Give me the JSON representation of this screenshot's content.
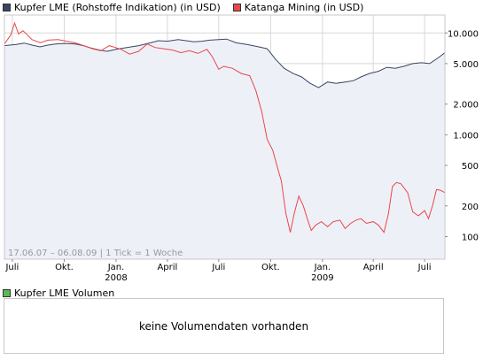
{
  "legend": [
    {
      "label": "Kupfer LME (Rohstoffe Indikation) (in USD)",
      "color": "#3a4560"
    },
    {
      "label": "Katanga Mining (in USD)",
      "color": "#e8474b"
    }
  ],
  "range_label": "17.06.07 – 06.08.09  |  1 Tick = 1 Woche",
  "volume": {
    "legend_label": "Kupfer LME Volumen",
    "legend_color": "#55bb55",
    "empty_message": "keine Volumendaten vorhanden"
  },
  "colors": {
    "copper_line": "#3a4560",
    "copper_fill": "#eef0f8",
    "katanga_line": "#e8474b",
    "grid": "#d8d8d8",
    "frame": "#c8c8c8"
  },
  "chart_data": {
    "type": "line",
    "y_scale": "log",
    "ylim": [
      60,
      15000
    ],
    "y_ticks": [
      {
        "label": "10.000",
        "value": 10000
      },
      {
        "label": "5.000",
        "value": 5000
      },
      {
        "label": "2.000",
        "value": 2000
      },
      {
        "label": "1.000",
        "value": 1000
      },
      {
        "label": "500",
        "value": 500
      },
      {
        "label": "200",
        "value": 200
      },
      {
        "label": "100",
        "value": 100
      }
    ],
    "x_range": [
      "2007-06-17",
      "2009-08-06"
    ],
    "x_ticks": [
      {
        "label": "Juli",
        "sub": "",
        "date": "2007-07-01"
      },
      {
        "label": "Okt.",
        "sub": "",
        "date": "2007-10-01"
      },
      {
        "label": "Jan.",
        "sub": "2008",
        "date": "2008-01-01"
      },
      {
        "label": "April",
        "sub": "",
        "date": "2008-04-01"
      },
      {
        "label": "Juli",
        "sub": "",
        "date": "2008-07-01"
      },
      {
        "label": "Okt.",
        "sub": "",
        "date": "2008-10-01"
      },
      {
        "label": "Jan.",
        "sub": "2009",
        "date": "2009-01-01"
      },
      {
        "label": "April",
        "sub": "",
        "date": "2009-04-01"
      },
      {
        "label": "Juli",
        "sub": "",
        "date": "2009-07-01"
      }
    ],
    "series": [
      {
        "name": "Kupfer LME (Rohstoffe Indikation) (in USD)",
        "points": [
          [
            "2007-06-17",
            7500
          ],
          [
            "2007-07-08",
            7700
          ],
          [
            "2007-07-22",
            7950
          ],
          [
            "2007-08-05",
            7600
          ],
          [
            "2007-08-19",
            7300
          ],
          [
            "2007-09-02",
            7600
          ],
          [
            "2007-09-16",
            7800
          ],
          [
            "2007-10-01",
            7900
          ],
          [
            "2007-10-21",
            7800
          ],
          [
            "2007-11-04",
            7500
          ],
          [
            "2007-11-18",
            7100
          ],
          [
            "2007-12-02",
            6800
          ],
          [
            "2007-12-16",
            6600
          ],
          [
            "2008-01-01",
            6900
          ],
          [
            "2008-01-20",
            7200
          ],
          [
            "2008-02-10",
            7500
          ],
          [
            "2008-03-02",
            8000
          ],
          [
            "2008-03-16",
            8400
          ],
          [
            "2008-04-01",
            8300
          ],
          [
            "2008-04-20",
            8600
          ],
          [
            "2008-05-04",
            8400
          ],
          [
            "2008-05-18",
            8200
          ],
          [
            "2008-06-01",
            8300
          ],
          [
            "2008-06-15",
            8500
          ],
          [
            "2008-07-01",
            8600
          ],
          [
            "2008-07-15",
            8700
          ],
          [
            "2008-08-01",
            8000
          ],
          [
            "2008-08-20",
            7700
          ],
          [
            "2008-09-10",
            7300
          ],
          [
            "2008-09-25",
            7000
          ],
          [
            "2008-10-10",
            5500
          ],
          [
            "2008-10-25",
            4500
          ],
          [
            "2008-11-10",
            4000
          ],
          [
            "2008-11-25",
            3700
          ],
          [
            "2008-12-10",
            3200
          ],
          [
            "2008-12-25",
            2900
          ],
          [
            "2009-01-10",
            3300
          ],
          [
            "2009-01-25",
            3200
          ],
          [
            "2009-02-10",
            3300
          ],
          [
            "2009-02-25",
            3400
          ],
          [
            "2009-03-10",
            3700
          ],
          [
            "2009-03-25",
            4000
          ],
          [
            "2009-04-10",
            4200
          ],
          [
            "2009-04-25",
            4600
          ],
          [
            "2009-05-10",
            4500
          ],
          [
            "2009-05-25",
            4700
          ],
          [
            "2009-06-10",
            5000
          ],
          [
            "2009-06-25",
            5100
          ],
          [
            "2009-07-10",
            5000
          ],
          [
            "2009-07-25",
            5700
          ],
          [
            "2009-08-06",
            6400
          ]
        ]
      },
      {
        "name": "Katanga Mining (in USD)",
        "points": [
          [
            "2007-06-17",
            7800
          ],
          [
            "2007-06-28",
            9500
          ],
          [
            "2007-07-05",
            12500
          ],
          [
            "2007-07-12",
            9800
          ],
          [
            "2007-07-20",
            10500
          ],
          [
            "2007-08-05",
            8600
          ],
          [
            "2007-08-20",
            8000
          ],
          [
            "2007-09-02",
            8500
          ],
          [
            "2007-09-20",
            8600
          ],
          [
            "2007-10-05",
            8300
          ],
          [
            "2007-10-20",
            8000
          ],
          [
            "2007-11-05",
            7500
          ],
          [
            "2007-11-20",
            7000
          ],
          [
            "2007-12-05",
            6700
          ],
          [
            "2007-12-20",
            7500
          ],
          [
            "2008-01-10",
            6900
          ],
          [
            "2008-01-25",
            6200
          ],
          [
            "2008-02-10",
            6600
          ],
          [
            "2008-02-25",
            7800
          ],
          [
            "2008-03-10",
            7200
          ],
          [
            "2008-03-25",
            7000
          ],
          [
            "2008-04-10",
            6800
          ],
          [
            "2008-04-25",
            6400
          ],
          [
            "2008-05-10",
            6700
          ],
          [
            "2008-05-25",
            6300
          ],
          [
            "2008-06-10",
            6900
          ],
          [
            "2008-06-20",
            5800
          ],
          [
            "2008-07-01",
            4400
          ],
          [
            "2008-07-10",
            4700
          ],
          [
            "2008-07-25",
            4500
          ],
          [
            "2008-08-10",
            4000
          ],
          [
            "2008-08-25",
            3800
          ],
          [
            "2008-09-05",
            2700
          ],
          [
            "2008-09-15",
            1700
          ],
          [
            "2008-09-25",
            900
          ],
          [
            "2008-10-05",
            700
          ],
          [
            "2008-10-12",
            500
          ],
          [
            "2008-10-20",
            350
          ],
          [
            "2008-10-28",
            170
          ],
          [
            "2008-11-05",
            110
          ],
          [
            "2008-11-12",
            170
          ],
          [
            "2008-11-20",
            250
          ],
          [
            "2008-11-28",
            200
          ],
          [
            "2008-12-05",
            150
          ],
          [
            "2008-12-12",
            115
          ],
          [
            "2008-12-20",
            130
          ],
          [
            "2008-12-30",
            140
          ],
          [
            "2009-01-10",
            125
          ],
          [
            "2009-01-20",
            140
          ],
          [
            "2009-02-01",
            145
          ],
          [
            "2009-02-10",
            120
          ],
          [
            "2009-02-20",
            135
          ],
          [
            "2009-03-01",
            145
          ],
          [
            "2009-03-10",
            150
          ],
          [
            "2009-03-20",
            135
          ],
          [
            "2009-04-01",
            140
          ],
          [
            "2009-04-10",
            130
          ],
          [
            "2009-04-20",
            110
          ],
          [
            "2009-04-28",
            170
          ],
          [
            "2009-05-05",
            310
          ],
          [
            "2009-05-12",
            340
          ],
          [
            "2009-05-20",
            330
          ],
          [
            "2009-06-01",
            270
          ],
          [
            "2009-06-10",
            175
          ],
          [
            "2009-06-20",
            160
          ],
          [
            "2009-07-01",
            180
          ],
          [
            "2009-07-08",
            150
          ],
          [
            "2009-07-15",
            200
          ],
          [
            "2009-07-22",
            290
          ],
          [
            "2009-07-29",
            285
          ],
          [
            "2009-08-06",
            270
          ]
        ]
      }
    ]
  }
}
